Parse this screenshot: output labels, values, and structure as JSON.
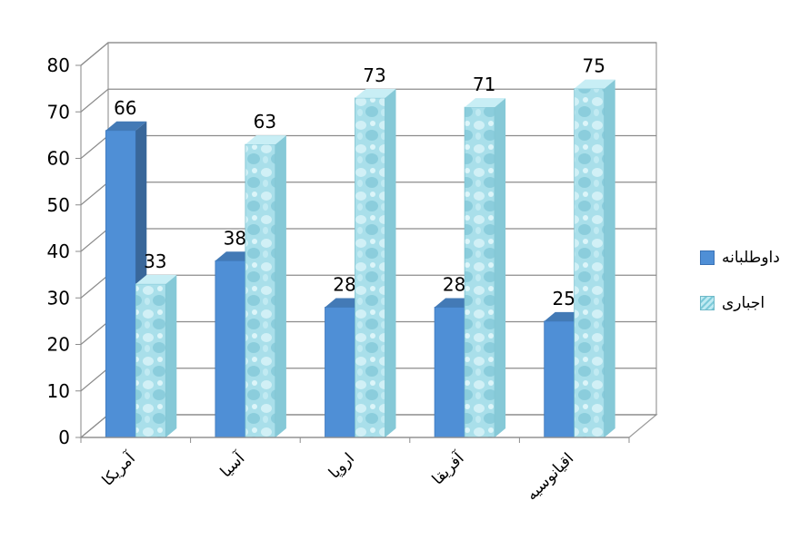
{
  "chart_data": {
    "type": "bar",
    "categories": [
      "آمریکا",
      "آسیا",
      "اروپا",
      "آفریقا",
      "اقیانوسیه"
    ],
    "series": [
      {
        "name": "داوطلبانه",
        "values": [
          66,
          38,
          28,
          28,
          25
        ],
        "color": "#4f8fd6"
      },
      {
        "name": "اجباری",
        "values": [
          33,
          63,
          73,
          71,
          75
        ],
        "color": "#9dd9e6"
      }
    ],
    "yticks": [
      0,
      10,
      20,
      30,
      40,
      50,
      60,
      70,
      80
    ],
    "ylim": [
      0,
      80
    ],
    "grid": true,
    "legend_position": "right"
  }
}
